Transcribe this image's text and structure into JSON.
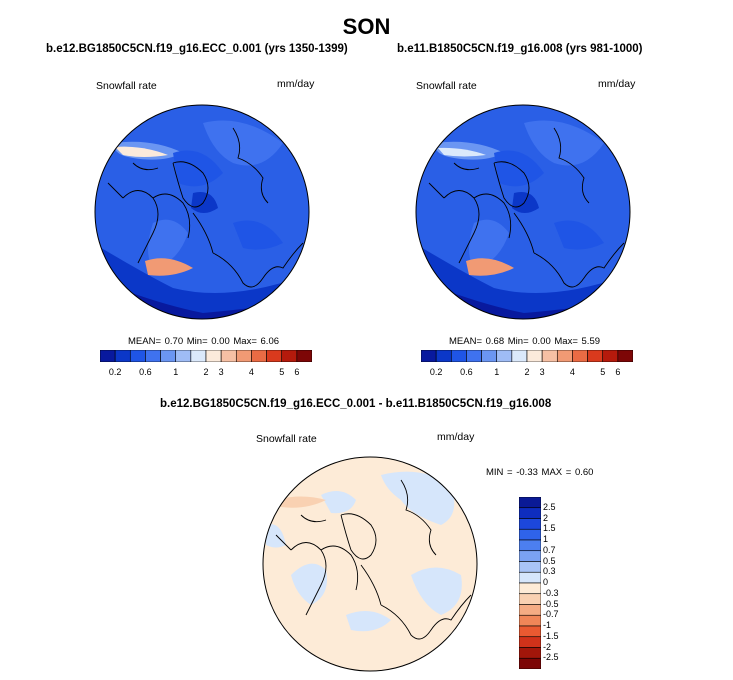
{
  "title": "SON",
  "panels": [
    {
      "case": "b.e12.BG1850C5CN.f19_g16.ECC_0.001 (yrs 1350-1399)",
      "variable": "Snowfall rate",
      "units": "mm/day",
      "stats": "MEAN=  0.70  Min=  0.00  Max=  6.06"
    },
    {
      "case": "b.e11.B1850C5CN.f19_g16.008 (yrs 981-1000)",
      "variable": "Snowfall rate",
      "units": "mm/day",
      "stats": "MEAN=  0.68  Min=  0.00  Max=  5.59"
    }
  ],
  "diff": {
    "case": "b.e12.BG1850C5CN.f19_g16.ECC_0.001 - b.e11.B1850C5CN.f19_g16.008",
    "variable": "Snowfall rate",
    "units": "mm/day",
    "stats": "MIN =  -0.33 MAX =   0.60"
  },
  "colorbar_abs": {
    "colors": [
      "#08199e",
      "#0b37c8",
      "#1f55e6",
      "#3f72ef",
      "#6b96f2",
      "#9fbcf5",
      "#dbe9fb",
      "#fbeadb",
      "#f6c0a4",
      "#f19a74",
      "#ea6b44",
      "#d93a1d",
      "#b51a0c",
      "#7d0606"
    ],
    "ticks": [
      "0.2",
      "0.6",
      "1",
      "2",
      "3",
      "4",
      "5",
      "6"
    ]
  },
  "colorbar_diff": {
    "colors": [
      "#0a1a96",
      "#0e2dbf",
      "#1c47dc",
      "#2f63ea",
      "#4c7ff0",
      "#7aa2f3",
      "#a9c4f6",
      "#d6e6fb",
      "#fdebd7",
      "#f9d1b2",
      "#f5ac84",
      "#f08658",
      "#e95a31",
      "#d0321a",
      "#a2160a",
      "#7d0606"
    ],
    "ticks": [
      "2.5",
      "2",
      "1.5",
      "1",
      "0.7",
      "0.5",
      "0.3",
      "0",
      "-0.3",
      "-0.5",
      "-0.7",
      "-1",
      "-1.5",
      "-2",
      "-2.5"
    ]
  }
}
